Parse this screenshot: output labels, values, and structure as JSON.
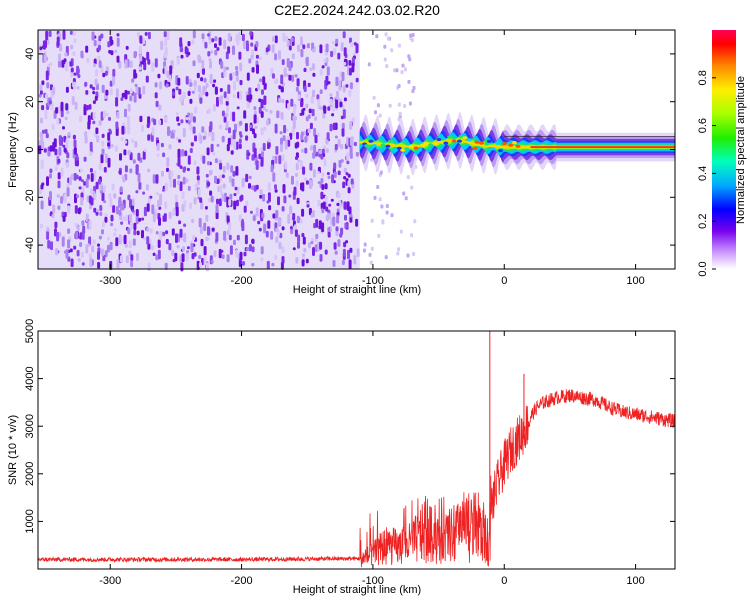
{
  "title": "C2E2.2024.242.03.02.R20",
  "chart_data": [
    {
      "type": "heatmap",
      "xlabel": "Height of straight line (km)",
      "ylabel": "Frequency (Hz)",
      "xlim": [
        -355,
        130
      ],
      "ylim": [
        -50,
        50
      ],
      "xticks": [
        -300,
        -200,
        -100,
        0,
        100
      ],
      "yticks": [
        -40,
        -20,
        0,
        20,
        40
      ],
      "colorbar": {
        "label": "Normalized spectral amplitude",
        "range": [
          0,
          1
        ],
        "ticks": [
          0.0,
          0.2,
          0.4,
          0.6,
          0.8
        ],
        "colormap": "rainbow (white-violet-blue-cyan-green-yellow-red)"
      },
      "noise_region_x": [
        -355,
        -110
      ],
      "signal_center_freq": [
        {
          "x": -110,
          "f": 3
        },
        {
          "x": -90,
          "f": 2
        },
        {
          "x": -70,
          "f": 1
        },
        {
          "x": -50,
          "f": 3
        },
        {
          "x": -35,
          "f": 4
        },
        {
          "x": -20,
          "f": 2
        },
        {
          "x": 0,
          "f": 1
        },
        {
          "x": 40,
          "f": 1
        },
        {
          "x": 80,
          "f": 1
        },
        {
          "x": 130,
          "f": 1
        }
      ]
    },
    {
      "type": "line",
      "xlabel": "Height of straight line (km)",
      "ylabel": "SNR (10 * v/v)",
      "xlim": [
        -355,
        130
      ],
      "ylim": [
        0,
        5000
      ],
      "xticks": [
        -300,
        -200,
        -100,
        0,
        100
      ],
      "yticks": [
        1000,
        2000,
        3000,
        4000,
        5000
      ],
      "series": [
        {
          "color": "#ee2222",
          "points": [
            [
              -355,
              200
            ],
            [
              -300,
              200
            ],
            [
              -250,
              200
            ],
            [
              -200,
              200
            ],
            [
              -150,
              210
            ],
            [
              -110,
              220
            ],
            [
              -100,
              300
            ],
            [
              -90,
              500
            ],
            [
              -80,
              450
            ],
            [
              -70,
              550
            ],
            [
              -60,
              800
            ],
            [
              -50,
              600
            ],
            [
              -40,
              700
            ],
            [
              -30,
              800
            ],
            [
              -20,
              900
            ],
            [
              -15,
              600
            ],
            [
              -12,
              300
            ],
            [
              -10,
              1300
            ],
            [
              -5,
              1800
            ],
            [
              0,
              2200
            ],
            [
              5,
              2500
            ],
            [
              10,
              2700
            ],
            [
              15,
              2900
            ],
            [
              20,
              3200
            ],
            [
              25,
              3400
            ],
            [
              30,
              3500
            ],
            [
              40,
              3600
            ],
            [
              50,
              3650
            ],
            [
              60,
              3600
            ],
            [
              70,
              3550
            ],
            [
              80,
              3400
            ],
            [
              90,
              3300
            ],
            [
              100,
              3250
            ],
            [
              110,
              3200
            ],
            [
              120,
              3150
            ],
            [
              130,
              3100
            ]
          ],
          "spikes": [
            {
              "x": -11,
              "y": 5000
            },
            {
              "x": 15,
              "y": 4100
            }
          ]
        }
      ]
    }
  ]
}
